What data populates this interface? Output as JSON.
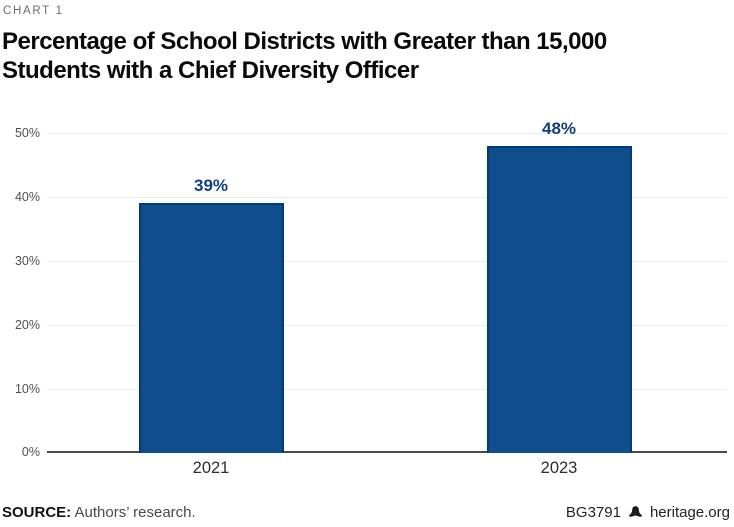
{
  "header": {
    "eyebrow": "CHART 1",
    "title_line1": "Percentage of School Districts with Greater than 15,000",
    "title_line2": "Students with a Chief Diversity Officer"
  },
  "chart_data": {
    "type": "bar",
    "title": "Percentage of School Districts with Greater than 15,000 Students with a Chief Diversity Officer",
    "categories": [
      "2021",
      "2023"
    ],
    "values": [
      39,
      48
    ],
    "value_labels": [
      "39%",
      "48%"
    ],
    "xlabel": "",
    "ylabel": "",
    "ylim": [
      0,
      50
    ],
    "yticks": [
      0,
      10,
      20,
      30,
      40,
      50
    ],
    "ytick_labels": [
      "0%",
      "10%",
      "20%",
      "30%",
      "40%",
      "50%"
    ],
    "grid": true,
    "legend": "none",
    "bar_color": "#114d8c",
    "bar_border_color": "#003d78",
    "value_label_color": "#113e80"
  },
  "footer": {
    "source_label": "SOURCE:",
    "source_text": " Authors’ research.",
    "report_id": "BG3791",
    "bell_icon": "liberty-bell-icon",
    "site": "heritage.org"
  }
}
